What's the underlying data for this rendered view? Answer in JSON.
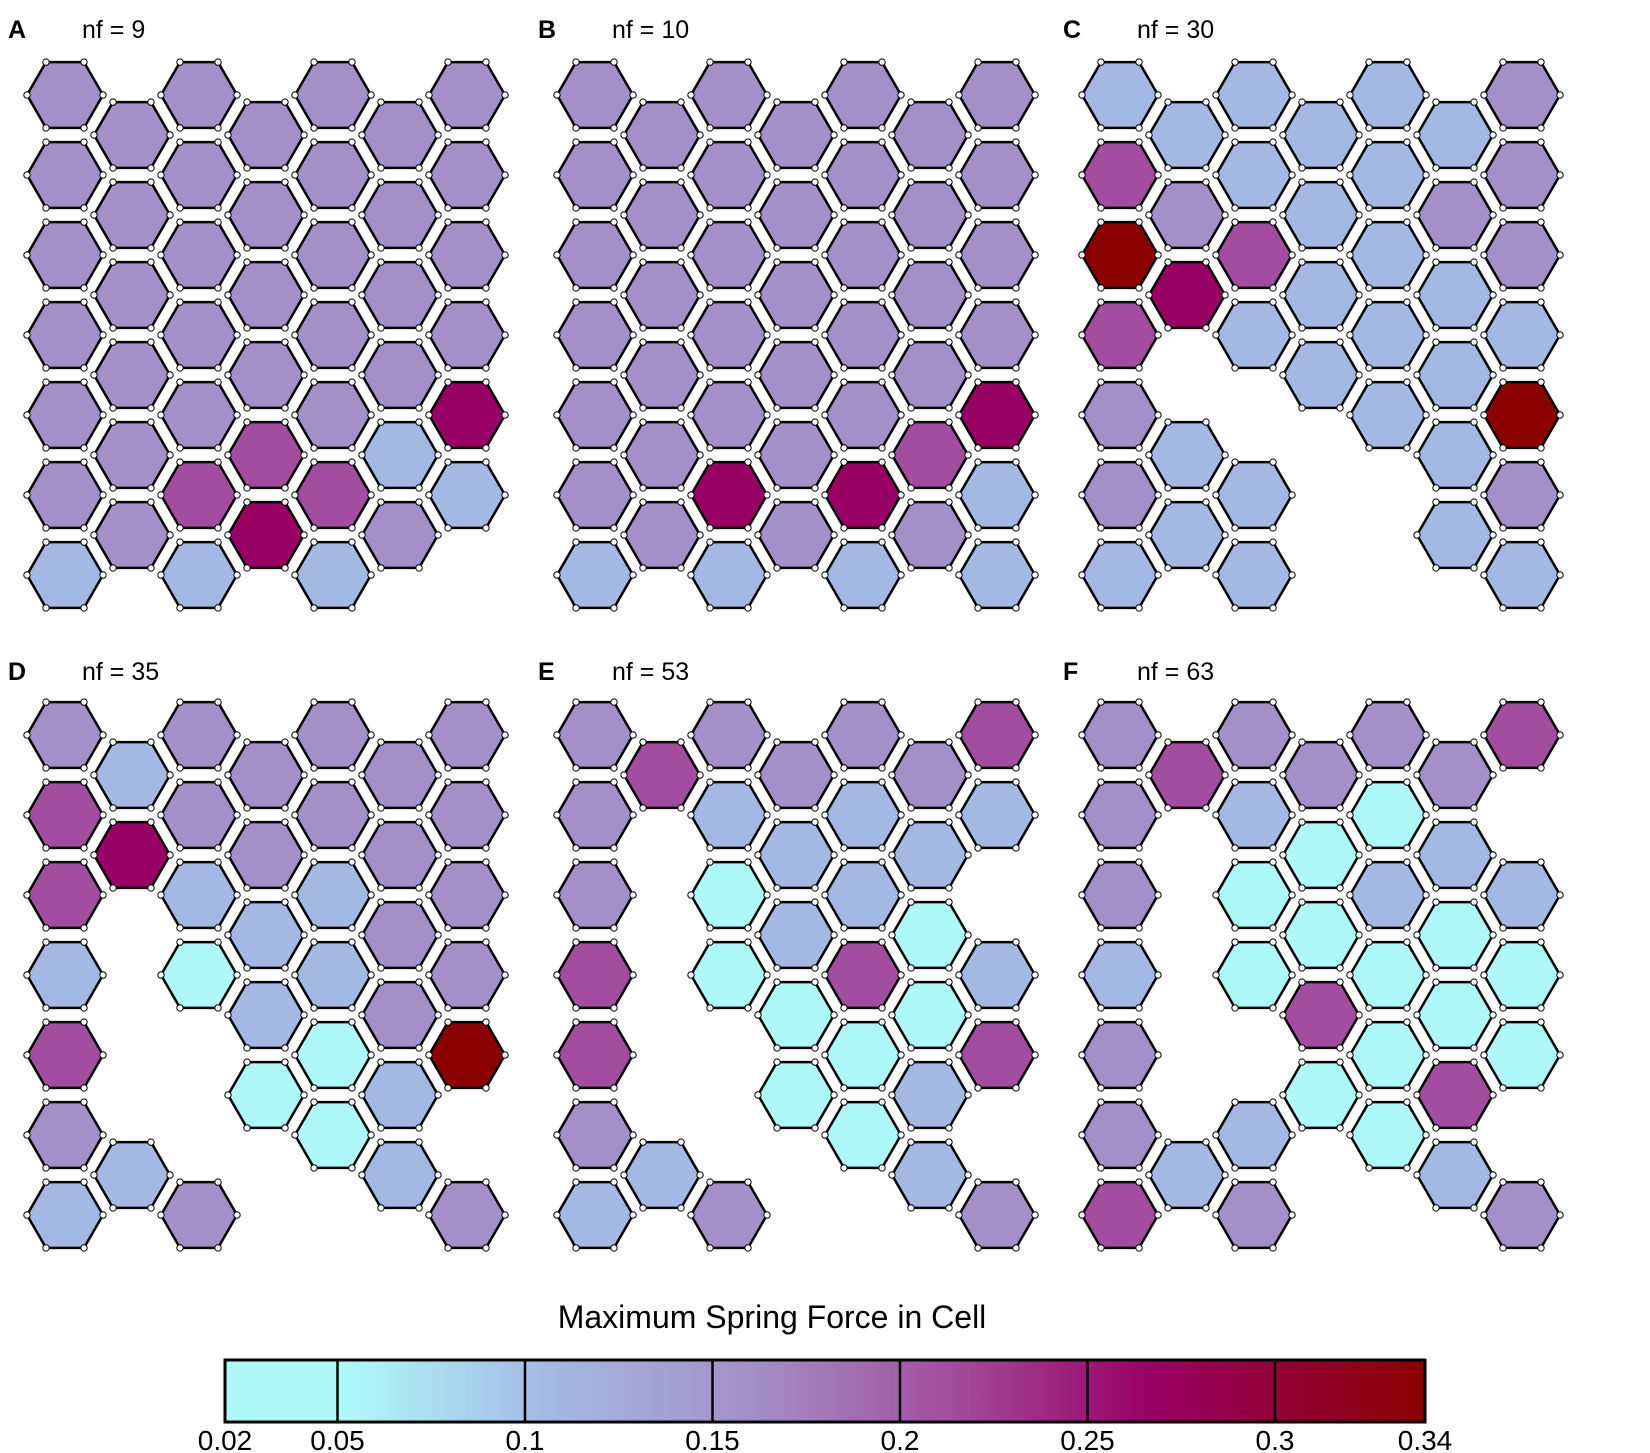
{
  "panels": [
    {
      "letter": "A",
      "nf_label": "nf = 9"
    },
    {
      "letter": "B",
      "nf_label": "nf = 10"
    },
    {
      "letter": "C",
      "nf_label": "nf = 30"
    },
    {
      "letter": "D",
      "nf_label": "nf = 35"
    },
    {
      "letter": "E",
      "nf_label": "nf = 53"
    },
    {
      "letter": "F",
      "nf_label": "nf = 63"
    }
  ],
  "colorbar": {
    "title": "Maximum Spring Force in Cell",
    "tick_labels": [
      "0.02",
      "0.05",
      "0.1",
      "0.15",
      "0.2",
      "0.25",
      "0.3",
      "0.34"
    ],
    "tick_values": [
      0.02,
      0.05,
      0.1,
      0.15,
      0.2,
      0.25,
      0.3,
      0.34
    ],
    "colors": [
      "#aef8f8",
      "#a4b8e4",
      "#a390c8",
      "#a24d9f",
      "#990064",
      "#8b0000"
    ]
  },
  "colors": {
    "edge": "#000000",
    "intact_node": "#ffffff",
    "fractured_edge": "#ffee00",
    "fractured_node": "#ddee44",
    "void": "#ffffff"
  }
}
